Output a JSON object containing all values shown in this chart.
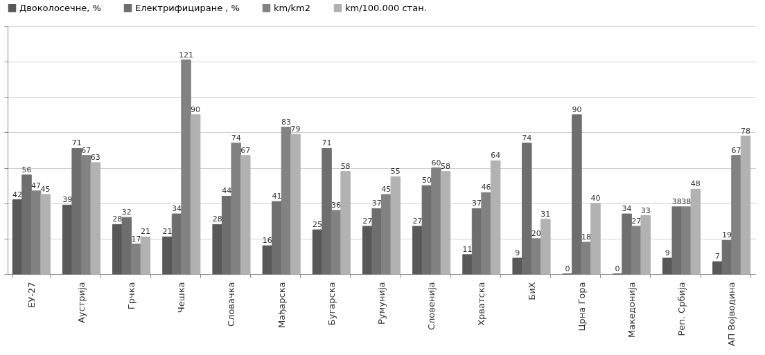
{
  "chart_data": {
    "type": "bar",
    "categories": [
      "ЕУ-27",
      "Аустрија",
      "Грчка",
      "Чешка",
      "Словачка",
      "Мађарска",
      "Бугарска",
      "Румунија",
      "Словенија",
      "Хрватска",
      "БиХ",
      "Црна Гора",
      "Македонија",
      "Реп. Србија",
      "АП Војводина"
    ],
    "series": [
      {
        "name": "Двоколосечне, %",
        "color": "#585858",
        "values": [
          42,
          39,
          28,
          21,
          28,
          16,
          25,
          27,
          27,
          11,
          9,
          0,
          0,
          9,
          7
        ]
      },
      {
        "name": "Електрифициране , %",
        "color": "#6e6e6e",
        "values": [
          56,
          71,
          32,
          34,
          44,
          41,
          71,
          37,
          50,
          37,
          74,
          90,
          34,
          38,
          19
        ]
      },
      {
        "name": "km/km2",
        "color": "#828282",
        "values": [
          47,
          67,
          17,
          121,
          74,
          83,
          36,
          45,
          60,
          46,
          20,
          18,
          27,
          38,
          67
        ]
      },
      {
        "name": "km/100.000 стан.",
        "color": "#b2b2b2",
        "values": [
          45,
          63,
          21,
          90,
          67,
          79,
          58,
          55,
          58,
          64,
          31,
          40,
          33,
          48,
          78
        ]
      }
    ],
    "ylim": [
      0,
      140
    ],
    "yticks": [
      {
        "value": 0,
        "label": null
      },
      {
        "value": 20,
        "label": null
      },
      {
        "value": 40,
        "label": null
      },
      {
        "value": 60,
        "label": null
      },
      {
        "value": 80,
        "label": null
      },
      {
        "value": 100,
        "label": null
      },
      {
        "value": 120,
        "label": null
      },
      {
        "value": 140,
        "label": null
      }
    ],
    "tick_labels": "x",
    "grid": "y",
    "legend": "top",
    "data_labels": true
  }
}
